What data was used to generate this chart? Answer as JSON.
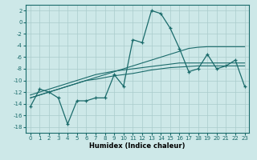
{
  "x": [
    0,
    1,
    2,
    3,
    4,
    5,
    6,
    7,
    8,
    9,
    10,
    11,
    12,
    13,
    14,
    15,
    16,
    17,
    18,
    19,
    20,
    21,
    22,
    23
  ],
  "y_main": [
    -14.5,
    -11.5,
    -12.0,
    -13.0,
    -17.5,
    -13.5,
    -13.5,
    -13.0,
    -13.0,
    -9.0,
    -11.0,
    -3.0,
    -3.5,
    2.0,
    1.5,
    -1.0,
    -4.5,
    -8.5,
    -8.0,
    -5.5,
    -8.0,
    -7.5,
    -6.5,
    -11.0
  ],
  "y_reg1": [
    -13.0,
    -12.5,
    -12.0,
    -11.5,
    -11.0,
    -10.5,
    -10.0,
    -9.8,
    -9.5,
    -9.2,
    -9.0,
    -8.8,
    -8.5,
    -8.2,
    -8.0,
    -7.8,
    -7.7,
    -7.6,
    -7.5,
    -7.5,
    -7.5,
    -7.5,
    -7.5,
    -7.5
  ],
  "y_reg2": [
    -12.5,
    -12.0,
    -11.5,
    -11.0,
    -10.5,
    -10.0,
    -9.5,
    -9.0,
    -8.7,
    -8.4,
    -8.2,
    -8.0,
    -7.8,
    -7.6,
    -7.4,
    -7.2,
    -7.0,
    -7.0,
    -7.0,
    -7.0,
    -7.0,
    -7.0,
    -7.0,
    -7.0
  ],
  "y_reg3": [
    -13.0,
    -12.5,
    -12.0,
    -11.5,
    -11.0,
    -10.5,
    -10.0,
    -9.5,
    -9.0,
    -8.5,
    -8.0,
    -7.5,
    -7.0,
    -6.5,
    -6.0,
    -5.5,
    -5.0,
    -4.5,
    -4.3,
    -4.2,
    -4.2,
    -4.2,
    -4.2,
    -4.2
  ],
  "bg_color": "#cde8e8",
  "line_color": "#1a6b6b",
  "grid_color": "#aacccc",
  "xlabel": "Humidex (Indice chaleur)",
  "xlim": [
    -0.5,
    23.5
  ],
  "ylim": [
    -19,
    3
  ],
  "yticks": [
    2,
    0,
    -2,
    -4,
    -6,
    -8,
    -10,
    -12,
    -14,
    -16,
    -18
  ],
  "xticks": [
    0,
    1,
    2,
    3,
    4,
    5,
    6,
    7,
    8,
    9,
    10,
    11,
    12,
    13,
    14,
    15,
    16,
    17,
    18,
    19,
    20,
    21,
    22,
    23
  ]
}
